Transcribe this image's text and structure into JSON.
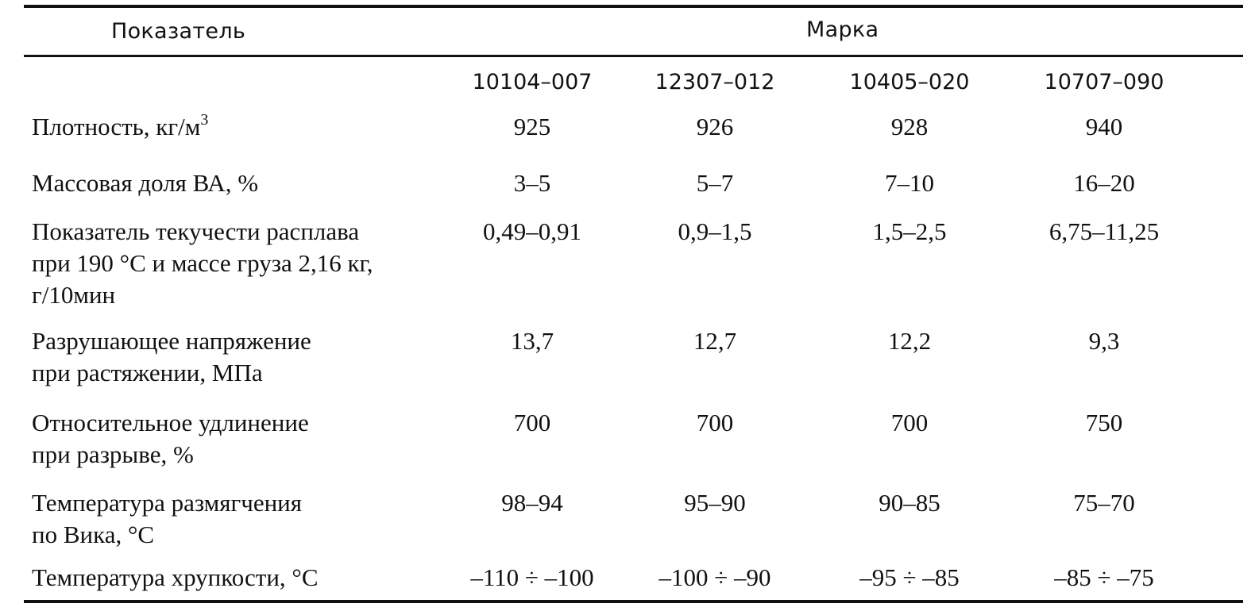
{
  "table": {
    "header": {
      "parameter": "Показатель",
      "grade": "Марка"
    },
    "grades": [
      "10104–007",
      "12307–012",
      "10405–020",
      "10707–090"
    ],
    "rows": [
      {
        "label": "Плотность, кг/м",
        "label_sup": "3",
        "values": [
          "925",
          "926",
          "928",
          "940"
        ]
      },
      {
        "label": "Массовая доля ВА, %",
        "values": [
          "3–5",
          "5–7",
          "7–10",
          "16–20"
        ]
      },
      {
        "label": "Показатель текучести расплава\nпри 190 °С и массе груза 2,16 кг,\nг/10мин",
        "values": [
          "0,49–0,91",
          "0,9–1,5",
          "1,5–2,5",
          "6,75–11,25"
        ]
      },
      {
        "label": "Разрушающее напряжение\nпри растяжении, МПа",
        "values": [
          "13,7",
          "12,7",
          "12,2",
          "9,3"
        ]
      },
      {
        "label": "Относительное удлинение\nпри разрыве, %",
        "values": [
          "700",
          "700",
          "700",
          "750"
        ]
      },
      {
        "label": "Температура размягчения\nпо Вика, °С",
        "values": [
          "98–94",
          "95–90",
          "90–85",
          "75–70"
        ]
      },
      {
        "label": "Температура хрупкости, °С",
        "values": [
          "–110 ÷ –100",
          "–100 ÷ –90",
          "–95 ÷ –85",
          "–85 ÷ –75"
        ]
      }
    ]
  }
}
